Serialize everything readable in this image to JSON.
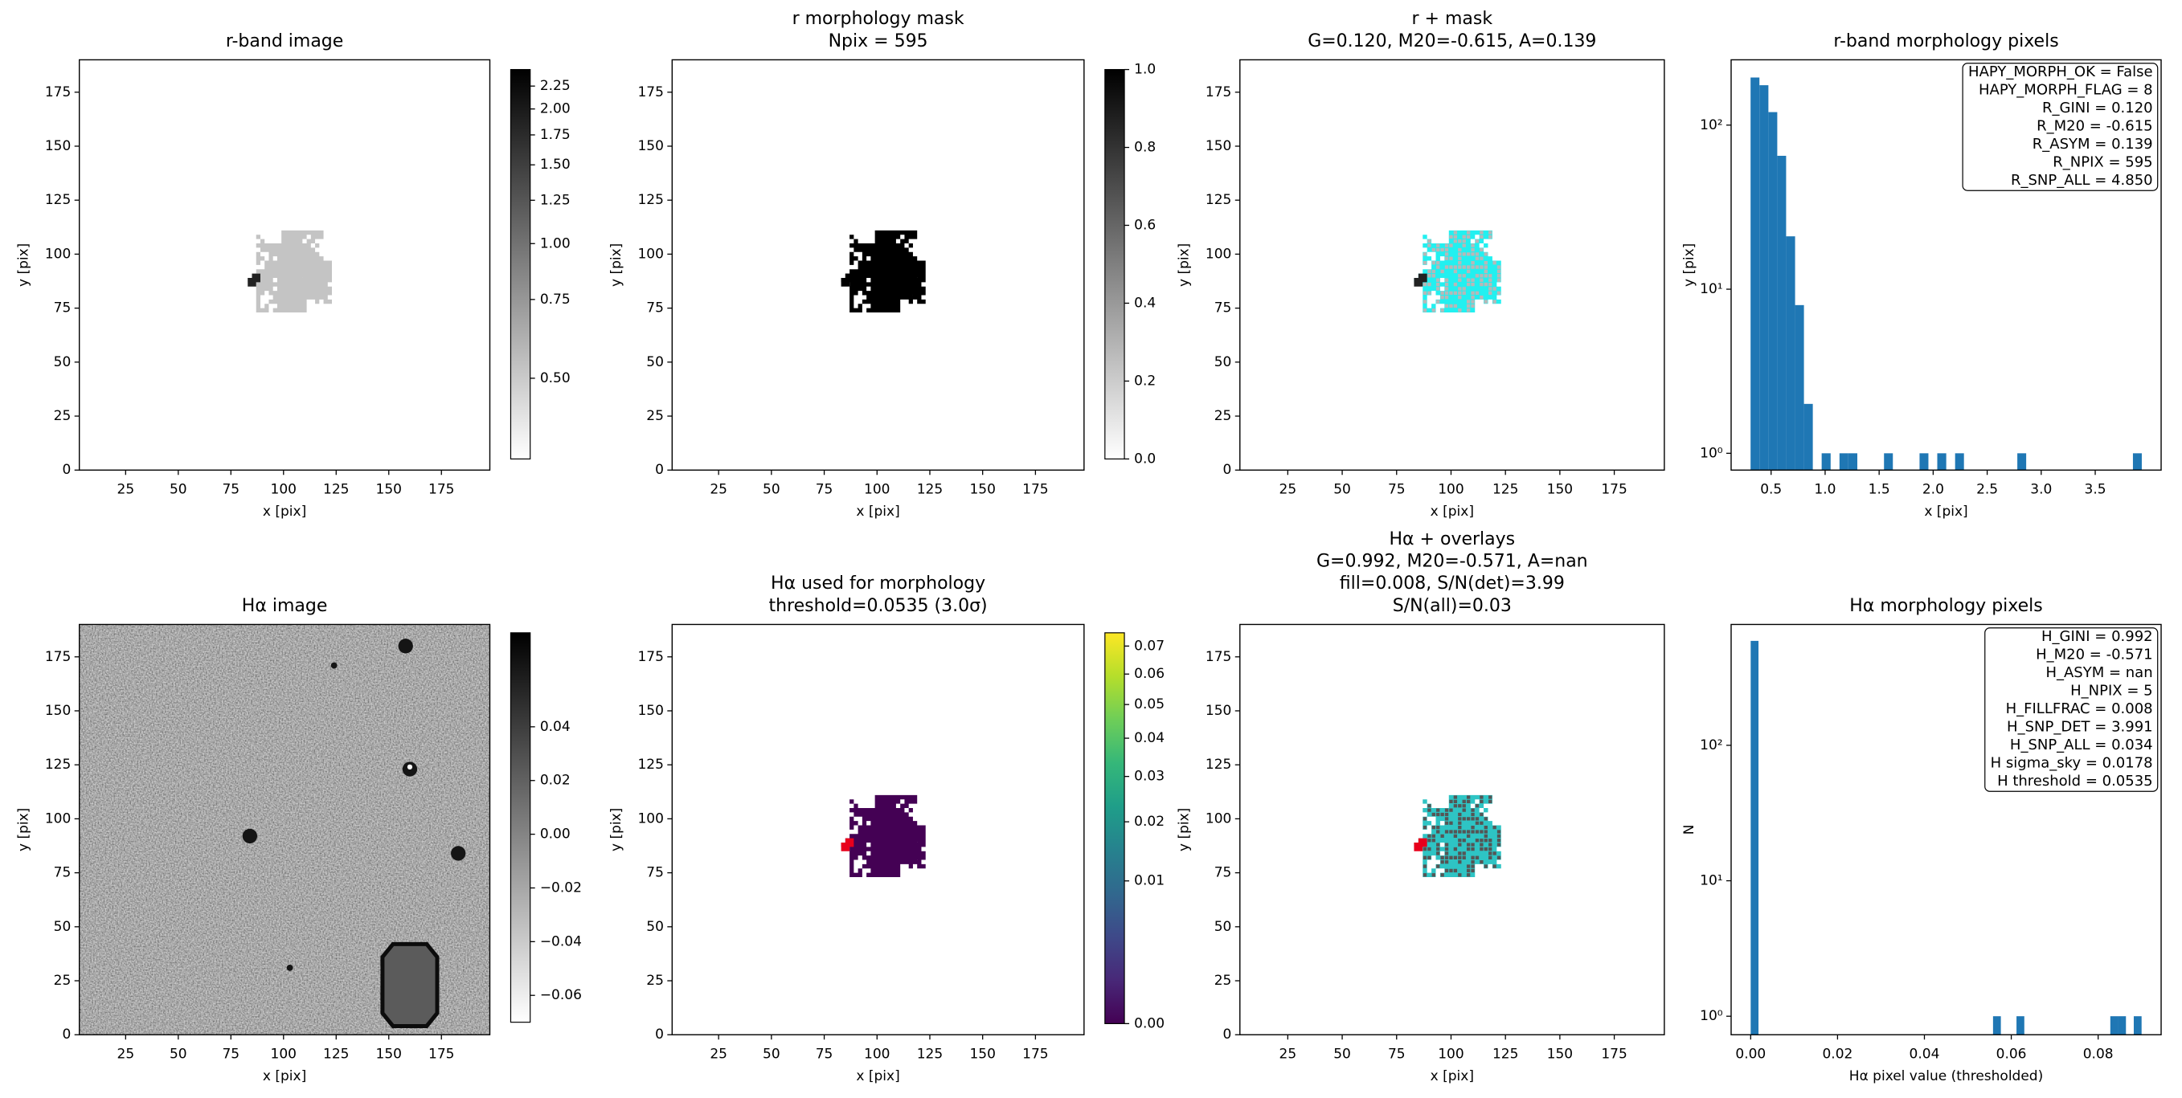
{
  "chart_data": [
    {
      "type": "image",
      "title": [
        "r-band image"
      ],
      "xlabel": "x [pix]",
      "ylabel": "y [pix]",
      "xlim": [
        3,
        198
      ],
      "ylim": [
        0,
        190
      ],
      "xticks": [
        25,
        50,
        75,
        100,
        125,
        150,
        175
      ],
      "yticks": [
        0,
        25,
        50,
        75,
        100,
        125,
        150,
        175
      ],
      "colorbar": {
        "cmap": "gray_r",
        "scale": "log",
        "lim": [
          0.33,
          2.45
        ],
        "ticks": [
          {
            "value": 0.5,
            "label": "0.50"
          },
          0.75,
          {
            "value": 1,
            "label": "1.00"
          },
          1.25,
          {
            "value": 1.5,
            "label": "1.50"
          },
          1.75,
          {
            "value": 2,
            "label": "2.00"
          },
          2.25
        ]
      }
    },
    {
      "type": "image",
      "title": [
        "r morphology mask",
        "Npix = 595"
      ],
      "xlabel": "x [pix]",
      "ylabel": "y [pix]",
      "xlim": [
        3,
        198
      ],
      "ylim": [
        0,
        190
      ],
      "xticks": [
        25,
        50,
        75,
        100,
        125,
        150,
        175
      ],
      "yticks": [
        0,
        25,
        50,
        75,
        100,
        125,
        150,
        175
      ],
      "colorbar": {
        "cmap": "gray_r",
        "scale": "linear",
        "lim": [
          0,
          1
        ],
        "ticks": [
          {
            "value": 0,
            "label": "0.0"
          },
          0.2,
          0.4,
          0.6,
          0.8,
          {
            "value": 1,
            "label": "1.0"
          }
        ]
      }
    },
    {
      "type": "image",
      "title": [
        "r + mask",
        "G=0.120, M20=-0.615, A=0.139"
      ],
      "xlabel": "x [pix]",
      "ylabel": "y [pix]",
      "xlim": [
        3,
        198
      ],
      "ylim": [
        0,
        190
      ],
      "xticks": [
        25,
        50,
        75,
        100,
        125,
        150,
        175
      ],
      "yticks": [
        0,
        25,
        50,
        75,
        100,
        125,
        150,
        175
      ]
    },
    {
      "type": "hist",
      "title": [
        "r-band morphology pixels"
      ],
      "xlabel": "x [pix]",
      "ylabel": "y [pix]",
      "color": "#1f77b4",
      "yscale": "log",
      "bins": [
        0.31,
        0.392,
        0.475,
        0.557,
        0.639,
        0.722,
        0.804,
        0.886,
        0.968,
        1.051,
        1.133,
        1.215,
        1.298,
        1.38,
        1.462,
        1.545,
        1.627,
        1.709,
        1.791,
        1.874,
        1.956,
        2.038,
        2.121,
        2.203,
        2.285,
        2.368,
        2.45,
        2.532,
        2.614,
        2.697,
        2.779,
        2.861,
        2.944,
        3.026,
        3.108,
        3.191,
        3.273,
        3.355,
        3.438,
        3.52,
        3.602,
        3.684,
        3.767,
        3.849,
        3.931
      ],
      "counts": [
        195,
        175,
        120,
        65,
        21,
        8,
        2,
        0,
        1,
        0,
        1,
        1,
        0,
        0,
        0,
        1,
        0,
        0,
        0,
        1,
        0,
        1,
        0,
        1,
        0,
        0,
        0,
        0,
        0,
        0,
        1,
        0,
        0,
        0,
        0,
        0,
        0,
        0,
        0,
        0,
        0,
        0,
        0,
        1
      ],
      "xlim": [
        0.13,
        4.11
      ],
      "ylim": [
        0.79,
        250
      ],
      "xticks": [
        0.5,
        {
          "value": 1,
          "label": "1.0"
        },
        1.5,
        {
          "value": 2,
          "label": "2.0"
        },
        2.5,
        {
          "value": 3,
          "label": "3.0"
        },
        3.5
      ],
      "yticks": [
        {
          "value": 1,
          "label": "10⁰"
        },
        {
          "value": 10,
          "label": "10¹"
        },
        {
          "value": 100,
          "label": "10²"
        }
      ],
      "annotation": [
        "HAPY_MORPH_OK = False",
        "HAPY_MORPH_FLAG = 8",
        "R_GINI = 0.120",
        "R_M20 = -0.615",
        "R_ASYM = 0.139",
        "R_NPIX = 595",
        "R_SNP_ALL = 4.850"
      ]
    },
    {
      "type": "image",
      "title": [
        "Hα image"
      ],
      "xlabel": "x [pix]",
      "ylabel": "y [pix]",
      "xlim": [
        3,
        198
      ],
      "ylim": [
        0,
        190
      ],
      "xticks": [
        25,
        50,
        75,
        100,
        125,
        150,
        175
      ],
      "yticks": [
        0,
        25,
        50,
        75,
        100,
        125,
        150,
        175
      ],
      "colorbar": {
        "cmap": "gray_r",
        "scale": "linear",
        "lim": [
          -0.07,
          0.075
        ],
        "ticks": [
          {
            "value": -0.06,
            "label": "−0.06"
          },
          {
            "value": -0.04,
            "label": "−0.04"
          },
          {
            "value": -0.02,
            "label": "−0.02"
          },
          {
            "value": 0,
            "label": "0.00"
          },
          0.02,
          0.04
        ]
      }
    },
    {
      "type": "image",
      "title": [
        "Hα used for morphology",
        "threshold=0.0535 (3.0σ)"
      ],
      "xlabel": "x [pix]",
      "ylabel": "y [pix]",
      "xlim": [
        3,
        198
      ],
      "ylim": [
        0,
        190
      ],
      "xticks": [
        25,
        50,
        75,
        100,
        125,
        150,
        175
      ],
      "yticks": [
        0,
        25,
        50,
        75,
        100,
        125,
        150,
        175
      ],
      "colorbar": {
        "cmap": "viridis",
        "scale": "sqrt",
        "lim": [
          0,
          0.075
        ],
        "ticks": [
          {
            "value": 0,
            "label": "0.00"
          },
          0.01,
          0.02,
          0.03,
          0.04,
          0.05,
          0.06,
          0.07
        ]
      }
    },
    {
      "type": "image",
      "title": [
        "Hα + overlays",
        "G=0.992, M20=-0.571, A=nan",
        "fill=0.008, S/N(det)=3.99",
        "S/N(all)=0.03"
      ],
      "xlabel": "x [pix]",
      "ylabel": "y [pix]",
      "xlim": [
        3,
        198
      ],
      "ylim": [
        0,
        190
      ],
      "xticks": [
        25,
        50,
        75,
        100,
        125,
        150,
        175
      ],
      "yticks": [
        0,
        25,
        50,
        75,
        100,
        125,
        150,
        175
      ]
    },
    {
      "type": "hist",
      "title": [
        "Hα morphology pixels"
      ],
      "xlabel": "Hα pixel value (thresholded)",
      "ylabel": "N",
      "color": "#1f77b4",
      "yscale": "log",
      "bins": [
        0,
        0.0018,
        0.0036,
        0.0054,
        0.0072,
        0.009,
        0.0108,
        0.0126,
        0.0144,
        0.0162,
        0.018,
        0.0198,
        0.0216,
        0.0234,
        0.0252,
        0.027,
        0.0288,
        0.0306,
        0.0324,
        0.0342,
        0.036,
        0.0378,
        0.0396,
        0.0414,
        0.0432,
        0.045,
        0.0468,
        0.0486,
        0.0504,
        0.0522,
        0.054,
        0.0558,
        0.0576,
        0.0594,
        0.0612,
        0.063,
        0.0648,
        0.0666,
        0.0684,
        0.0702,
        0.072,
        0.0738,
        0.0756,
        0.0774,
        0.0792,
        0.081,
        0.0828,
        0.0846,
        0.0864,
        0.0882,
        0.09
      ],
      "counts": [
        590,
        0,
        0,
        0,
        0,
        0,
        0,
        0,
        0,
        0,
        0,
        0,
        0,
        0,
        0,
        0,
        0,
        0,
        0,
        0,
        0,
        0,
        0,
        0,
        0,
        0,
        0,
        0,
        0,
        0,
        0,
        1,
        0,
        0,
        1,
        0,
        0,
        0,
        0,
        0,
        0,
        0,
        0,
        0,
        0,
        0,
        1,
        1,
        0,
        1
      ],
      "xlim": [
        -0.0045,
        0.0945
      ],
      "ylim": [
        0.73,
        780
      ],
      "xticks": [
        {
          "value": 0,
          "label": "0.00"
        },
        0.02,
        0.04,
        0.06,
        0.08
      ],
      "yticks": [
        {
          "value": 1,
          "label": "10⁰"
        },
        {
          "value": 10,
          "label": "10¹"
        },
        {
          "value": 100,
          "label": "10²"
        }
      ],
      "annotation": [
        "H_GINI = 0.992",
        "H_M20 = -0.571",
        "H_ASYM = nan",
        "H_NPIX = 5",
        "H_FILLFRAC = 0.008",
        "H_SNP_DET = 3.991",
        "H_SNP_ALL = 0.034",
        "H sigma_sky = 0.0178",
        "H threshold = 0.0535"
      ]
    }
  ]
}
